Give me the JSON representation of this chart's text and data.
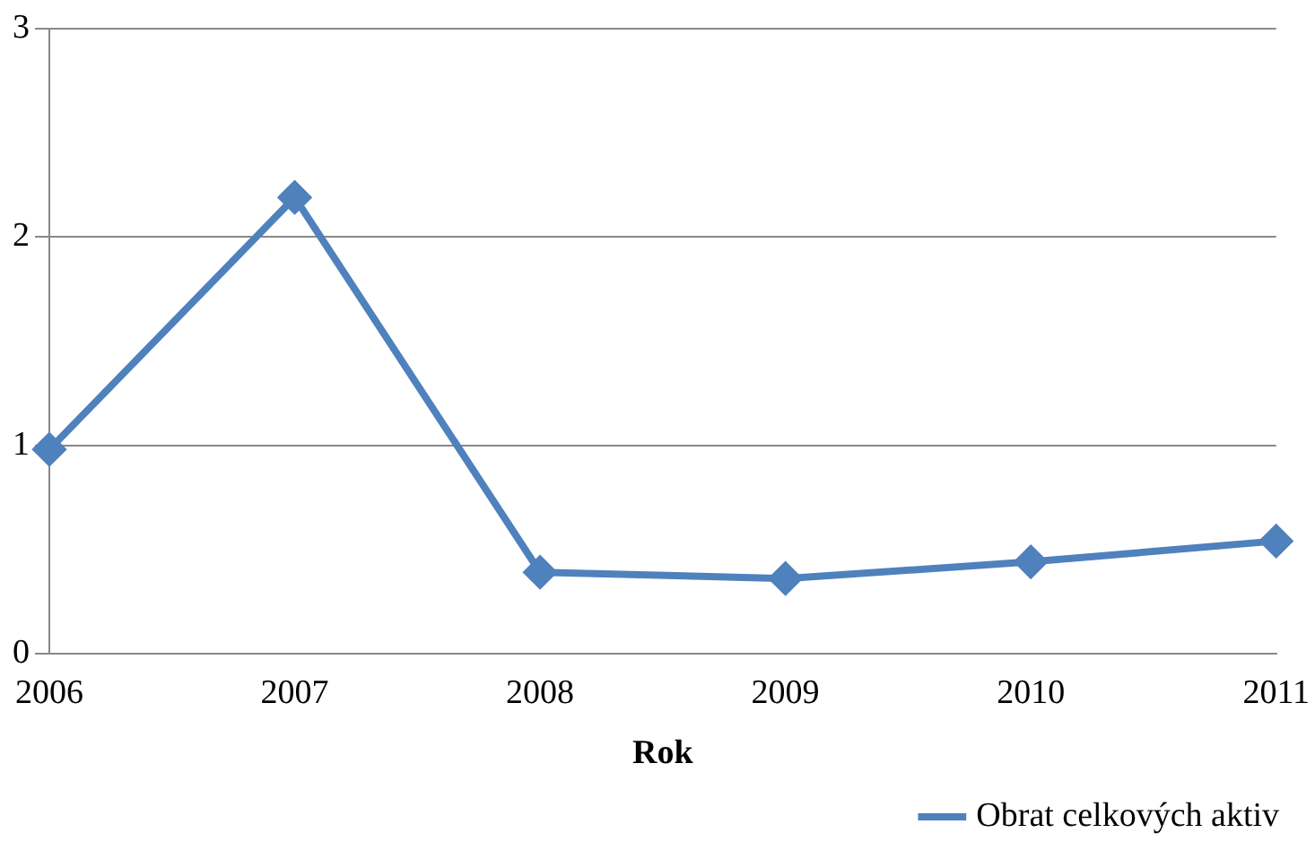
{
  "chart_data": {
    "type": "line",
    "xlabel": "Rok",
    "categories": [
      "2006",
      "2007",
      "2008",
      "2009",
      "2010",
      "2011"
    ],
    "series": [
      {
        "name": "Obrat celkových aktiv",
        "color": "#4f81bd",
        "values": [
          0.98,
          2.19,
          0.39,
          0.36,
          0.44,
          0.54
        ]
      }
    ],
    "ylim": [
      0,
      3
    ],
    "yticks": [
      0,
      1,
      2,
      3
    ],
    "grid": "y",
    "legend": "bottom right",
    "marker": "diamond",
    "line_style": "solid"
  }
}
